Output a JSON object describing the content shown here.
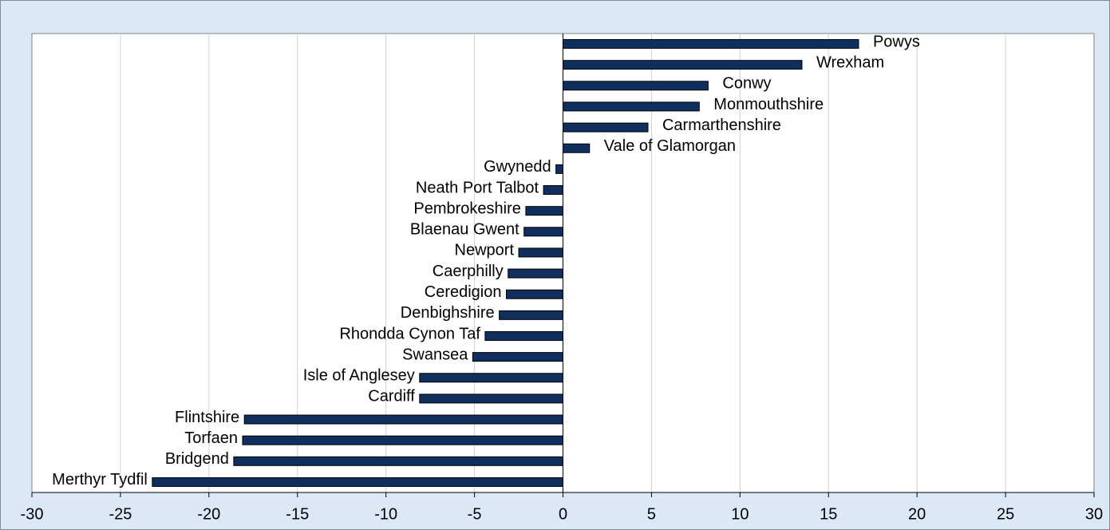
{
  "chart_data": {
    "type": "barh",
    "categories": [
      "Powys",
      "Wrexham",
      "Conwy",
      "Monmouthshire",
      "Carmarthenshire",
      "Vale of Glamorgan",
      "Gwynedd",
      "Neath Port Talbot",
      "Pembrokeshire",
      "Blaenau Gwent",
      "Newport",
      "Caerphilly",
      "Ceredigion",
      "Denbighshire",
      "Rhondda Cynon Taf",
      "Swansea",
      "Isle of Anglesey",
      "Cardiff",
      "Flintshire",
      "Torfaen",
      "Bridgend",
      "Merthyr Tydfil"
    ],
    "values": [
      16.7,
      13.5,
      8.2,
      7.7,
      4.8,
      1.5,
      -0.4,
      -1.1,
      -2.1,
      -2.2,
      -2.5,
      -3.1,
      -3.2,
      -3.6,
      -4.4,
      -5.1,
      -8.1,
      -8.1,
      -18.0,
      -18.1,
      -18.6,
      -23.2
    ],
    "color": "#112f5e",
    "xlim": [
      -30,
      30
    ],
    "xticks": [
      -30,
      -25,
      -20,
      -15,
      -10,
      -5,
      0,
      5,
      10,
      15,
      20,
      25,
      30
    ],
    "grid": true
  }
}
